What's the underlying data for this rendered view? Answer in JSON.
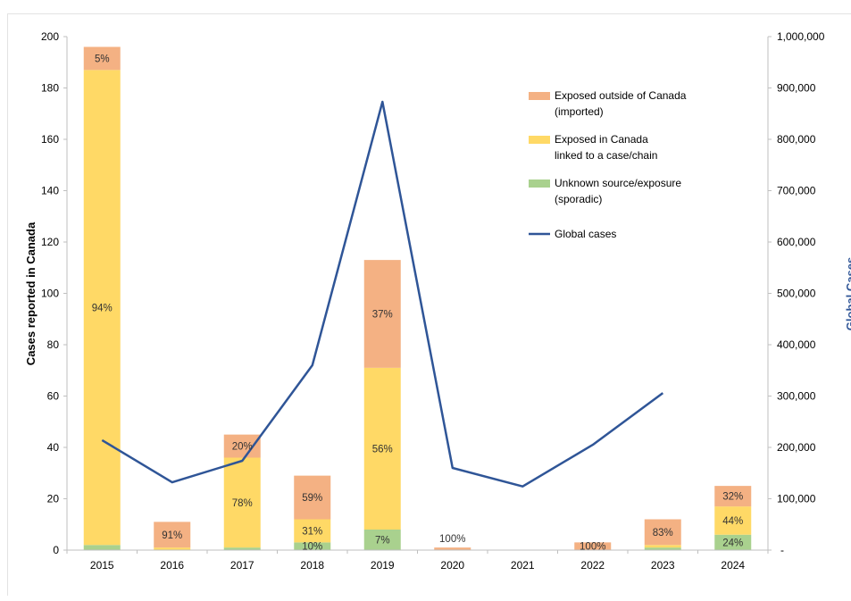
{
  "chart_data": {
    "type": "bar",
    "stacked": true,
    "categories": [
      "2015",
      "2016",
      "2017",
      "2018",
      "2019",
      "2020",
      "2021",
      "2022",
      "2023",
      "2024"
    ],
    "series": [
      {
        "key": "unknown",
        "name": "Unknown source/exposure (sporadic)",
        "legend_lines": [
          "Unknown source/exposure",
          "(sporadic)"
        ],
        "color": "#a9d18e",
        "values": [
          2,
          0,
          1,
          3,
          8,
          0,
          0,
          0,
          1,
          6
        ],
        "labels": [
          "",
          "",
          "",
          "10%",
          "7%",
          "",
          "",
          "",
          "",
          "24%"
        ]
      },
      {
        "key": "canada",
        "name": "Exposed in Canada linked to a case/chain",
        "legend_lines": [
          "Exposed in Canada",
          "linked to a case/chain"
        ],
        "color": "#ffd966",
        "values": [
          185,
          1,
          35,
          9,
          63,
          0,
          0,
          0,
          1,
          11
        ],
        "labels": [
          "94%",
          "",
          "78%",
          "31%",
          "56%",
          "",
          "",
          "",
          "",
          "44%"
        ]
      },
      {
        "key": "imported",
        "name": "Exposed outside of Canada (imported)",
        "legend_lines": [
          "Exposed outside of Canada",
          "(imported)"
        ],
        "color": "#f4b183",
        "values": [
          9,
          10,
          9,
          17,
          42,
          1,
          0,
          3,
          10,
          8
        ],
        "labels": [
          "5%",
          "91%",
          "20%",
          "59%",
          "37%",
          "100%",
          "",
          "100%",
          "83%",
          "32%"
        ]
      }
    ],
    "line": {
      "name": "Global cases",
      "color": "#2f5597",
      "values": [
        214000,
        132000,
        174000,
        360000,
        873000,
        160000,
        124000,
        205000,
        306000,
        null
      ]
    },
    "ylabel": "Cases reported in Canada",
    "ylabel_right": "Global Cases",
    "ylim": [
      0,
      200
    ],
    "ylim_right": [
      0,
      1000000
    ],
    "yticks": [
      "0",
      "20",
      "40",
      "60",
      "80",
      "100",
      "120",
      "140",
      "160",
      "180",
      "200"
    ],
    "yticks_right": [
      "-",
      "100,000",
      "200,000",
      "300,000",
      "400,000",
      "500,000",
      "600,000",
      "700,000",
      "800,000",
      "900,000",
      "1,000,000"
    ],
    "legend_position": "top-right",
    "grid": false
  }
}
